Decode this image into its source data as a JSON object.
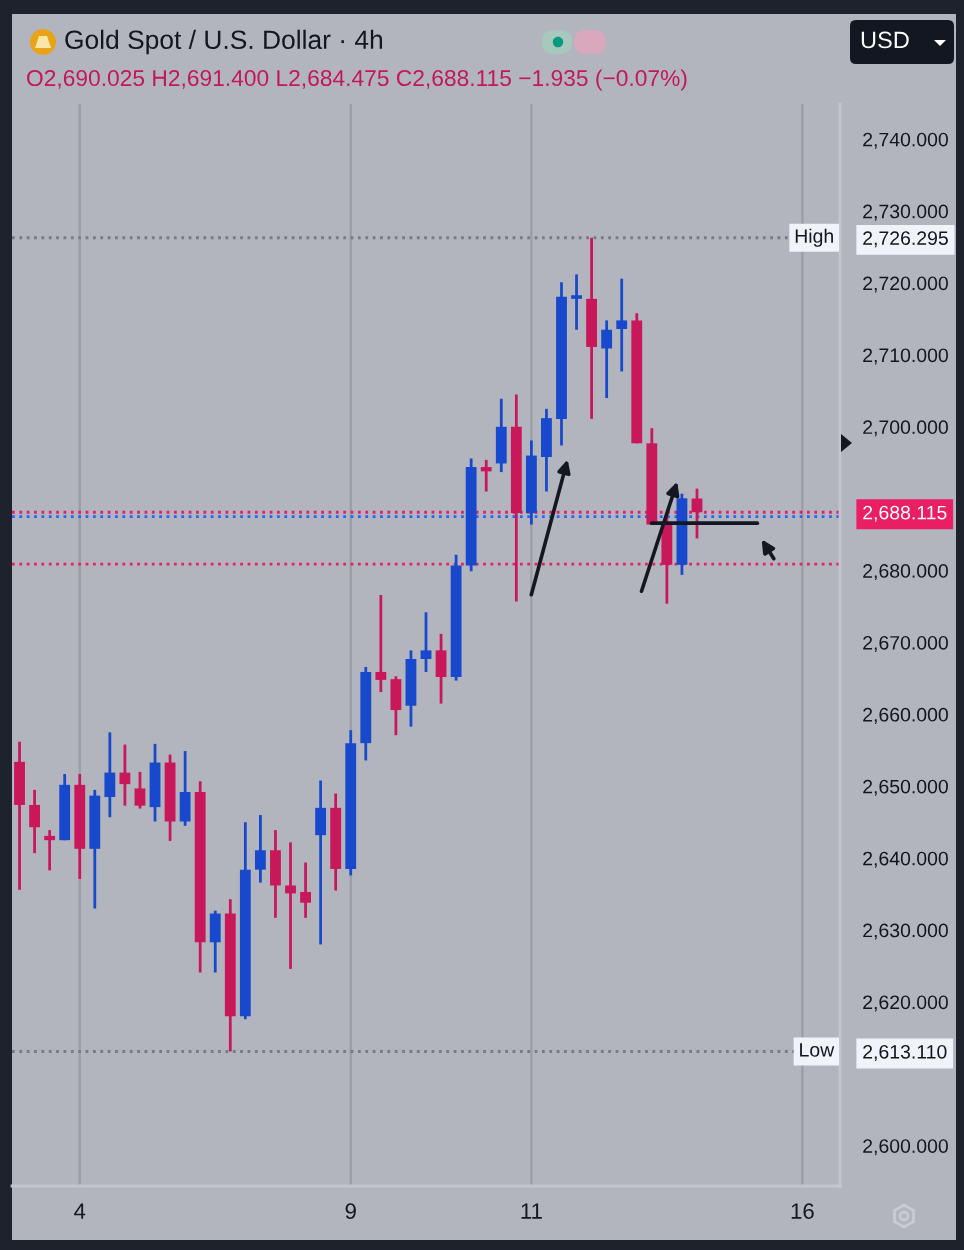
{
  "chart_data": {
    "type": "candlestick",
    "title": "Gold Spot / U.S. Dollar · 4h",
    "subtitle": "O2,690.025 H2,691.400 L2,684.475 C2,688.115 −1.935 (−0.07%)",
    "annotations": [
      "USD"
    ],
    "categories": [
      null,
      null,
      null,
      null,
      "4",
      null,
      null,
      null,
      null,
      null,
      null,
      null,
      null,
      null,
      null,
      null,
      null,
      null,
      null,
      null,
      null,
      null,
      "9",
      null,
      null,
      null,
      null,
      null,
      null,
      null,
      null,
      null,
      null,
      null,
      "11",
      null,
      null,
      null,
      null,
      null,
      null,
      null,
      null,
      null,
      null,
      null,
      null,
      null,
      null,
      null,
      null,
      null,
      "16",
      null,
      null
    ],
    "ohlc": [
      [
        2653.4,
        2656.2,
        2635.6,
        2647.4
      ],
      [
        2647.4,
        2649.5,
        2640.7,
        2644.3
      ],
      [
        2643.1,
        2643.9,
        2638.3,
        2642.5
      ],
      [
        2642.5,
        2651.7,
        2642.5,
        2650.2
      ],
      [
        2650.2,
        2651.7,
        2637.1,
        2641.3
      ],
      [
        2641.3,
        2649.5,
        2633.0,
        2648.7
      ],
      [
        2648.5,
        2657.5,
        2645.7,
        2651.9
      ],
      [
        2651.9,
        2655.8,
        2647.3,
        2650.3
      ],
      [
        2649.7,
        2652.0,
        2646.9,
        2647.3
      ],
      [
        2647.1,
        2655.9,
        2645.1,
        2653.3
      ],
      [
        2653.3,
        2654.4,
        2642.4,
        2645.1
      ],
      [
        2645.1,
        2654.9,
        2644.5,
        2649.2
      ],
      [
        2649.2,
        2650.7,
        2624.1,
        2628.3
      ],
      [
        2628.3,
        2632.7,
        2624.1,
        2632.3
      ],
      [
        2632.3,
        2634.3,
        2613.11,
        2618.0
      ],
      [
        2618.0,
        2645.0,
        2617.6,
        2638.4
      ],
      [
        2638.4,
        2646.0,
        2636.6,
        2641.1
      ],
      [
        2641.1,
        2643.9,
        2631.7,
        2636.2
      ],
      [
        2636.2,
        2642.2,
        2624.6,
        2635.1
      ],
      [
        2635.3,
        2639.4,
        2631.7,
        2633.8
      ],
      [
        2643.2,
        2650.8,
        2628.0,
        2647.0
      ],
      [
        2647.0,
        2649.0,
        2635.5,
        2638.5
      ],
      [
        2638.5,
        2657.8,
        2637.6,
        2656.0
      ],
      [
        2656.0,
        2666.6,
        2653.6,
        2665.9
      ],
      [
        2665.9,
        2676.6,
        2663.1,
        2664.8
      ],
      [
        2664.9,
        2665.3,
        2657.1,
        2660.6
      ],
      [
        2661.2,
        2668.9,
        2658.3,
        2667.7
      ],
      [
        2667.7,
        2674.2,
        2665.9,
        2668.9
      ],
      [
        2668.9,
        2671.2,
        2661.5,
        2665.2
      ],
      [
        2665.2,
        2682.2,
        2664.7,
        2680.7
      ],
      [
        2680.7,
        2695.6,
        2679.9,
        2694.4
      ],
      [
        2694.4,
        2695.4,
        2691.0,
        2693.8
      ],
      [
        2694.9,
        2703.9,
        2693.7,
        2700.0
      ],
      [
        2700.0,
        2704.5,
        2675.7,
        2688.0
      ],
      [
        2688.0,
        2698.1,
        2686.4,
        2696.0
      ],
      [
        2695.8,
        2702.5,
        2691.0,
        2701.2
      ],
      [
        2701.1,
        2720.1,
        2697.4,
        2718.1
      ],
      [
        2717.8,
        2721.2,
        2713.5,
        2718.3
      ],
      [
        2717.8,
        2726.295,
        2701.1,
        2711.1
      ],
      [
        2710.9,
        2714.8,
        2704.0,
        2713.5
      ],
      [
        2713.6,
        2720.6,
        2707.7,
        2714.8
      ],
      [
        2714.8,
        2715.8,
        2697.7,
        2697.7
      ],
      [
        2697.7,
        2699.8,
        2686.4,
        2686.4
      ],
      [
        2686.4,
        2687.9,
        2675.4,
        2680.8
      ],
      [
        2680.8,
        2690.7,
        2679.4,
        2690.05
      ],
      [
        2690.025,
        2691.4,
        2684.475,
        2688.115
      ],
      null,
      null,
      null,
      null,
      null,
      null,
      null,
      null,
      null
    ],
    "colors": [
      "#c8185a",
      "#c8185a",
      "#c8185a",
      "#1848cc",
      "#c8185a",
      "#1848cc",
      "#1848cc",
      "#c8185a",
      "#c8185a",
      "#1848cc",
      "#c8185a",
      "#1848cc",
      "#c8185a",
      "#1848cc",
      "#c8185a",
      "#1848cc",
      "#1848cc",
      "#c8185a",
      "#c8185a",
      "#c8185a",
      "#1848cc",
      "#c8185a",
      "#1848cc",
      "#1848cc",
      "#c8185a",
      "#c8185a",
      "#1848cc",
      "#1848cc",
      "#c8185a",
      "#1848cc",
      "#1848cc",
      "#c8185a",
      "#1848cc",
      "#c8185a",
      "#1848cc",
      "#1848cc",
      "#1848cc",
      "#1848cc",
      "#c8185a",
      "#1848cc",
      "#1848cc",
      "#c8185a",
      "#c8185a",
      "#c8185a",
      "#1848cc",
      "#c8185a",
      null,
      null,
      null,
      null,
      null,
      null,
      null,
      null,
      null
    ],
    "series": [
      {
        "type": "line",
        "color": "#131722",
        "values": [
          null,
          null,
          null,
          null,
          null,
          null,
          null,
          null,
          null,
          null,
          null,
          null,
          null,
          null,
          null,
          null,
          null,
          null,
          null,
          null,
          null,
          null,
          null,
          null,
          null,
          null,
          null,
          null,
          null,
          null,
          null,
          null,
          null,
          null,
          null,
          null,
          null,
          null,
          null,
          null,
          null,
          null,
          2686.6,
          2686.6,
          2686.6,
          2686.6,
          2686.6,
          2686.6,
          2686.6,
          2686.6,
          null,
          null,
          null,
          null,
          null
        ]
      }
    ],
    "ylim": [
      2594.4,
      2744.9
    ],
    "yticks": [
      {
        "value": 2600,
        "label": "2,600.000"
      },
      {
        "value": 2613.11,
        "label": "2,613.110"
      },
      {
        "value": 2620,
        "label": "2,620.000"
      },
      {
        "value": 2630,
        "label": "2,630.000"
      },
      {
        "value": 2640,
        "label": "2,640.000"
      },
      {
        "value": 2650,
        "label": "2,650.000"
      },
      {
        "value": 2660,
        "label": "2,660.000"
      },
      {
        "value": 2670,
        "label": "2,670.000"
      },
      {
        "value": 2680,
        "label": "2,680.000"
      },
      {
        "value": 2688.115,
        "label": "2,688.115"
      },
      {
        "value": 2700,
        "label": "2,700.000"
      },
      {
        "value": 2710,
        "label": "2,710.000"
      },
      {
        "value": 2720,
        "label": "2,720.000"
      },
      {
        "value": 2726.295,
        "label": "2,726.295"
      },
      {
        "value": 2730,
        "label": "2,730.000"
      },
      {
        "value": 2740,
        "label": "2,740.000"
      }
    ],
    "ref_lines": [
      {
        "axis": "y",
        "value": 2726.295,
        "label": "High",
        "color": "#787b86",
        "line_style": "dotted"
      },
      {
        "axis": "y",
        "value": 2688.115,
        "color": "#e91e63",
        "line_style": "dotted"
      },
      {
        "axis": "y",
        "value": 2687.5,
        "color": "#2962ff",
        "line_style": "dotted"
      },
      {
        "axis": "y",
        "value": 2680.9,
        "color": "#e91e63",
        "line_style": "dotted"
      },
      {
        "axis": "y",
        "value": 2613.11,
        "label": "Low",
        "color": "#787b86",
        "line_style": "dotted"
      }
    ],
    "grid": "x"
  }
}
